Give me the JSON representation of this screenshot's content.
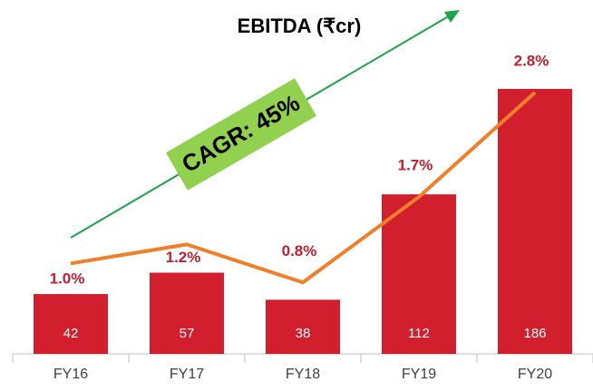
{
  "chart_data": {
    "type": "bar",
    "title": "EBITDA (₹cr)",
    "annotation": "CAGR: 45%",
    "categories": [
      "FY16",
      "FY17",
      "FY18",
      "FY19",
      "FY20"
    ],
    "series": [
      {
        "type": "bar",
        "color": "#d11f2e",
        "values": [
          42,
          57,
          38,
          112,
          186
        ]
      },
      {
        "type": "line",
        "axis": "y2",
        "color": "#f07f2a",
        "values": [
          1.0,
          1.2,
          0.8,
          1.7,
          2.8
        ],
        "value_labels": [
          "1.0%",
          "1.2%",
          "0.8%",
          "1.7%",
          "2.8%"
        ]
      }
    ],
    "ylim": [
      0,
      200
    ],
    "y2lim": [
      0,
      3
    ]
  }
}
